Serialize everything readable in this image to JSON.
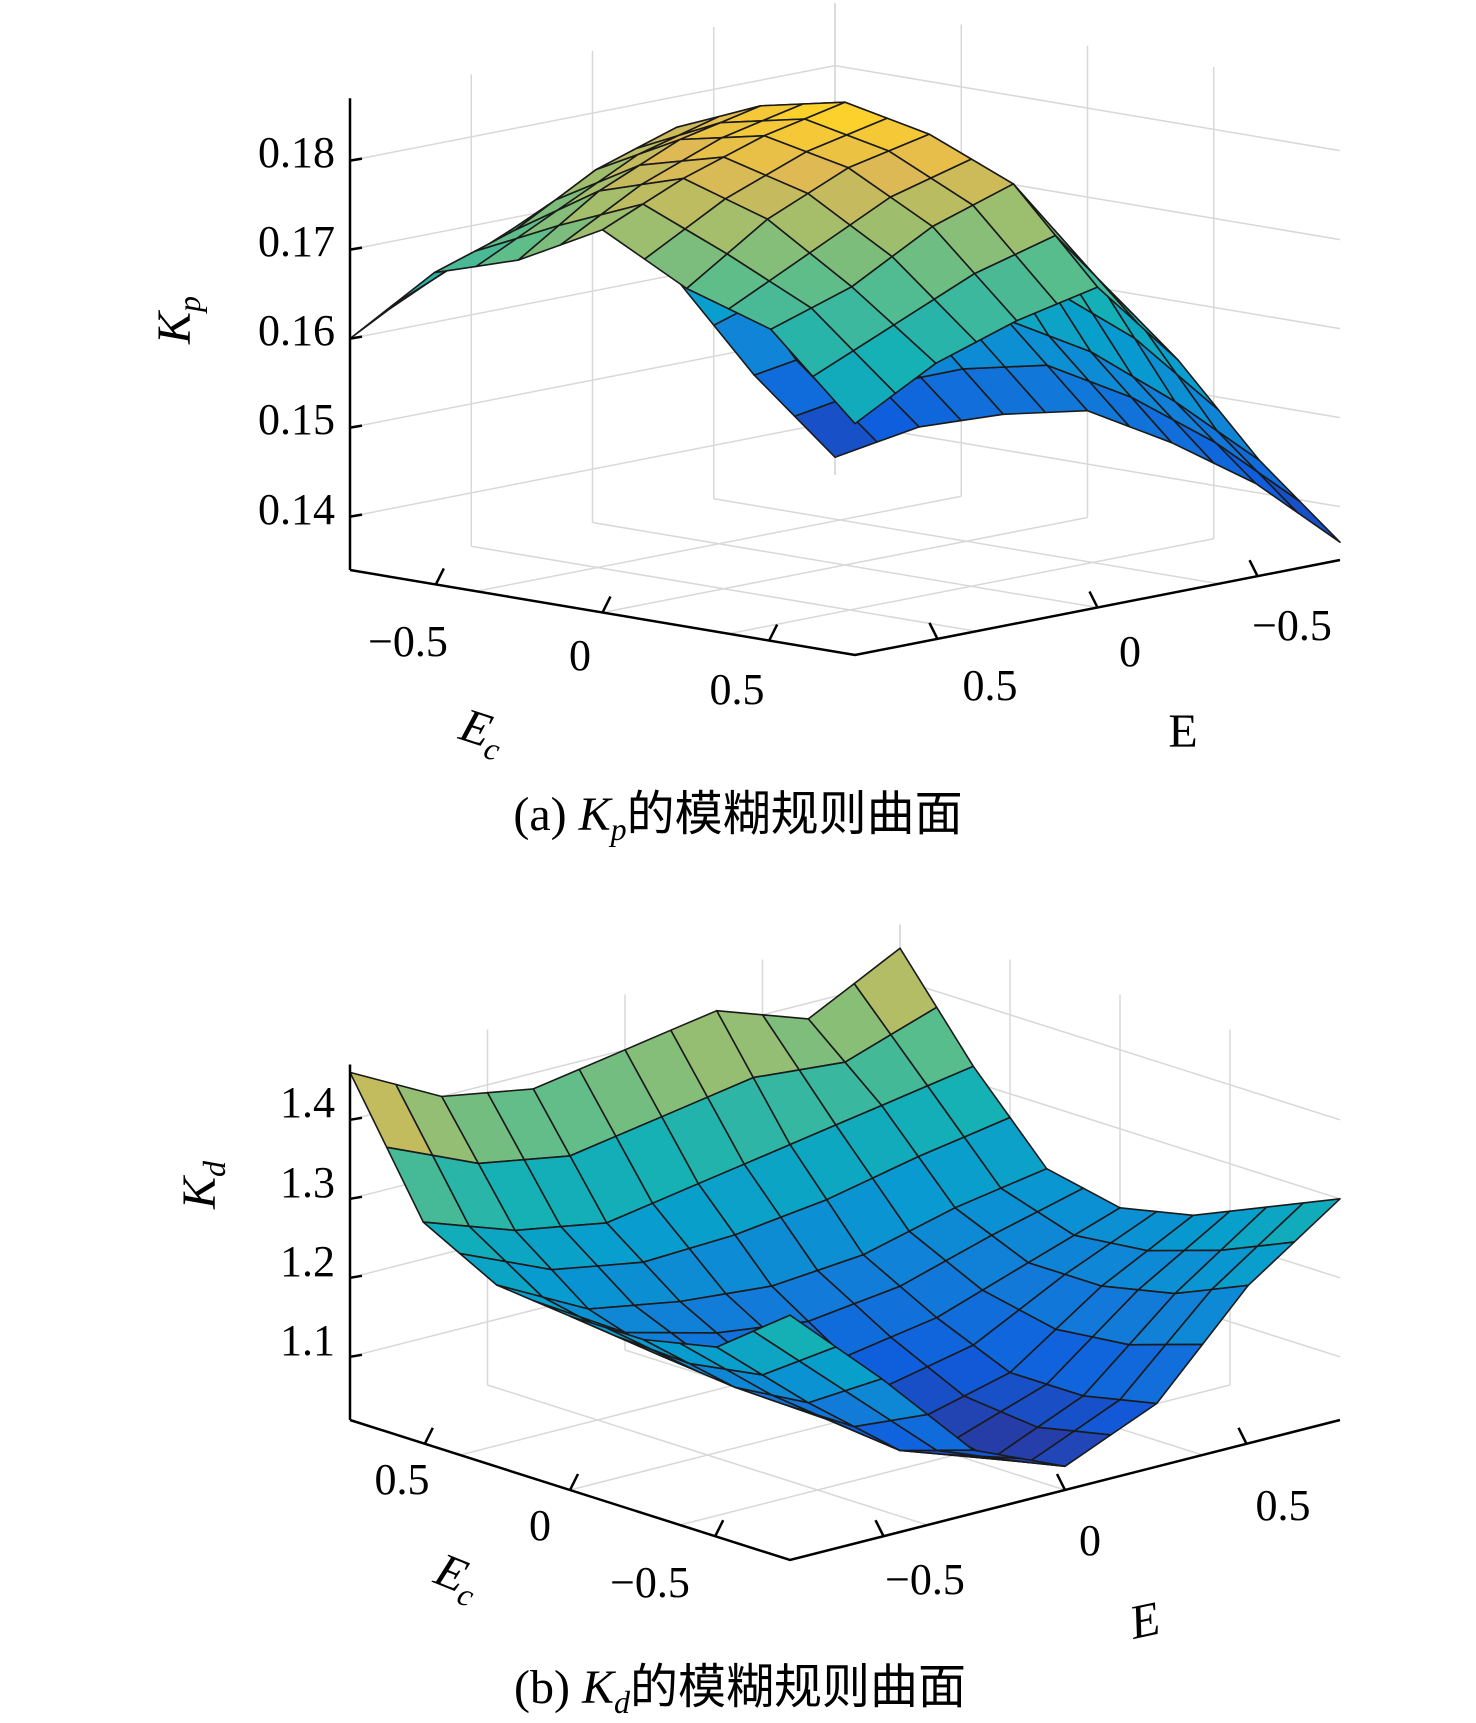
{
  "chart_data": [
    {
      "type": "surface",
      "caption": {
        "prefix": "(a) ",
        "var": "K",
        "sub": "p",
        "suffix": "的模糊规则曲面"
      },
      "zlabel": {
        "main": "K",
        "sub": "p"
      },
      "xlabel": {
        "main": "E",
        "sub": "c"
      },
      "ylabel": "E",
      "zticks": [
        "0.14",
        "0.15",
        "0.16",
        "0.17",
        "0.18"
      ],
      "zlim": [
        0.134,
        0.187
      ],
      "xticks": [
        "−0.5",
        "0",
        "0.5"
      ],
      "yticks": [
        "0.5",
        "0",
        "−0.5"
      ],
      "grid": true,
      "colormap": "parula",
      "note": "7x7 rule surface, interpolated to 13x13 mesh",
      "rule_values": [
        [
          0.16,
          0.169,
          0.172,
          0.177,
          0.172,
          0.169,
          0.16
        ],
        [
          0.165,
          0.172,
          0.178,
          0.181,
          0.178,
          0.172,
          0.165
        ],
        [
          0.168,
          0.177,
          0.182,
          0.184,
          0.182,
          0.177,
          0.168
        ],
        [
          0.17,
          0.18,
          0.184,
          0.186,
          0.184,
          0.18,
          0.17
        ],
        [
          0.16,
          0.168,
          0.172,
          0.174,
          0.172,
          0.168,
          0.16
        ],
        [
          0.147,
          0.152,
          0.156,
          0.158,
          0.156,
          0.152,
          0.147
        ],
        [
          0.136,
          0.141,
          0.144,
          0.146,
          0.144,
          0.141,
          0.136
        ]
      ]
    },
    {
      "type": "surface",
      "caption": {
        "prefix": "(b) ",
        "var": "K",
        "sub": "d",
        "suffix": "的模糊规则曲面"
      },
      "zlabel": {
        "main": "K",
        "sub": "d"
      },
      "xlabel": {
        "main": "E",
        "sub": "c"
      },
      "ylabel": "E",
      "zticks": [
        "1.1",
        "1.2",
        "1.3",
        "1.4"
      ],
      "zlim": [
        1.02,
        1.47
      ],
      "xticks": [
        "0.5",
        "0",
        "−0.5"
      ],
      "yticks": [
        "−0.5",
        "0",
        "0.5"
      ],
      "grid": true,
      "colormap": "parula",
      "note": "7x7 rule surface, interpolated to 13x13 mesh",
      "rule_values": [
        [
          1.33,
          1.26,
          1.24,
          1.24,
          1.25,
          1.3,
          1.46
        ],
        [
          1.22,
          1.16,
          1.15,
          1.16,
          1.19,
          1.26,
          1.4
        ],
        [
          1.1,
          1.07,
          1.08,
          1.12,
          1.17,
          1.24,
          1.38
        ],
        [
          1.05,
          1.03,
          1.05,
          1.1,
          1.16,
          1.26,
          1.4
        ],
        [
          1.1,
          1.08,
          1.08,
          1.12,
          1.17,
          1.28,
          1.42
        ],
        [
          1.22,
          1.18,
          1.16,
          1.16,
          1.2,
          1.3,
          1.38
        ],
        [
          1.3,
          1.26,
          1.22,
          1.2,
          1.22,
          1.32,
          1.44
        ]
      ]
    }
  ]
}
